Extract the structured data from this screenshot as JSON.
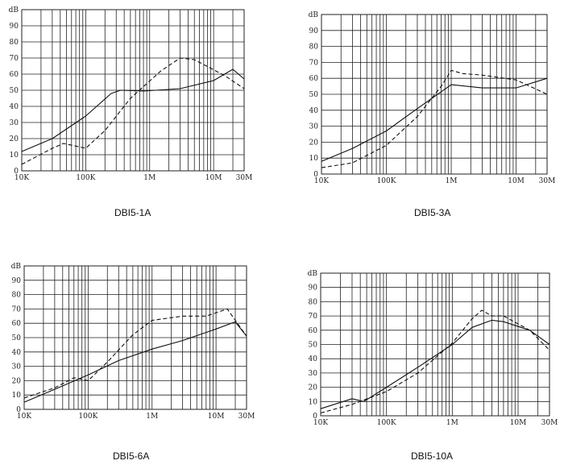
{
  "chart_data": [
    {
      "type": "line",
      "title": "DBI5-1A",
      "ylabel": "dB",
      "xscale": "log",
      "ylim": [
        0,
        100
      ],
      "xlim": [
        10000,
        30000000
      ],
      "x_ticks": [
        "10K",
        "100K",
        "1M",
        "10M",
        "30M"
      ],
      "y_ticks": [
        "0",
        "10",
        "20",
        "30",
        "40",
        "50",
        "60",
        "70",
        "80",
        "90"
      ],
      "series": [
        {
          "style": "solid",
          "points": [
            [
              10000,
              12
            ],
            [
              30000,
              20
            ],
            [
              100000,
              34
            ],
            [
              250000,
              48
            ],
            [
              350000,
              50
            ],
            [
              800000,
              49.5
            ],
            [
              3000000,
              51
            ],
            [
              10000000,
              56
            ],
            [
              20000000,
              63
            ],
            [
              30000000,
              57
            ]
          ]
        },
        {
          "style": "dashed",
          "points": [
            [
              10000,
              4
            ],
            [
              30000,
              14
            ],
            [
              45000,
              17
            ],
            [
              100000,
              14
            ],
            [
              200000,
              25
            ],
            [
              500000,
              45
            ],
            [
              1500000,
              62
            ],
            [
              3000000,
              70
            ],
            [
              5000000,
              69
            ],
            [
              15000000,
              59
            ],
            [
              30000000,
              51
            ]
          ]
        }
      ]
    },
    {
      "type": "line",
      "title": "DBI5-3A",
      "ylabel": "dB",
      "xscale": "log",
      "ylim": [
        0,
        100
      ],
      "xlim": [
        10000,
        30000000
      ],
      "x_ticks": [
        "10K",
        "100K",
        "1M",
        "10M",
        "30M"
      ],
      "y_ticks": [
        "0",
        "10",
        "20",
        "30",
        "40",
        "50",
        "60",
        "70",
        "80",
        "90"
      ],
      "series": [
        {
          "style": "solid",
          "points": [
            [
              10000,
              8
            ],
            [
              30000,
              16
            ],
            [
              100000,
              27
            ],
            [
              300000,
              41
            ],
            [
              1000000,
              56
            ],
            [
              3000000,
              54
            ],
            [
              10000000,
              54
            ],
            [
              30000000,
              60
            ]
          ]
        },
        {
          "style": "dashed",
          "points": [
            [
              10000,
              4
            ],
            [
              30000,
              7
            ],
            [
              100000,
              18
            ],
            [
              300000,
              36
            ],
            [
              700000,
              55
            ],
            [
              1000000,
              65
            ],
            [
              1500000,
              63
            ],
            [
              3000000,
              62
            ],
            [
              10000000,
              59
            ],
            [
              30000000,
              50
            ]
          ]
        }
      ]
    },
    {
      "type": "line",
      "title": "DBI5-6A",
      "ylabel": "dB",
      "xscale": "log",
      "ylim": [
        0,
        100
      ],
      "xlim": [
        10000,
        30000000
      ],
      "x_ticks": [
        "10K",
        "100K",
        "1M",
        "10M",
        "30M"
      ],
      "y_ticks": [
        "0",
        "10",
        "20",
        "30",
        "40",
        "50",
        "60",
        "70",
        "80",
        "90"
      ],
      "series": [
        {
          "style": "solid",
          "points": [
            [
              10000,
              5
            ],
            [
              30000,
              14
            ],
            [
              100000,
              24
            ],
            [
              300000,
              34
            ],
            [
              1000000,
              42
            ],
            [
              3000000,
              48
            ],
            [
              10000000,
              56
            ],
            [
              20000000,
              61
            ],
            [
              30000000,
              51
            ]
          ]
        },
        {
          "style": "dashed",
          "points": [
            [
              10000,
              8
            ],
            [
              30000,
              15
            ],
            [
              60000,
              22
            ],
            [
              100000,
              20
            ],
            [
              200000,
              33
            ],
            [
              500000,
              52
            ],
            [
              1000000,
              62
            ],
            [
              3000000,
              65
            ],
            [
              7000000,
              65
            ],
            [
              15000000,
              70
            ],
            [
              30000000,
              51
            ]
          ]
        }
      ]
    },
    {
      "type": "line",
      "title": "DBI5-10A",
      "ylabel": "dB",
      "xscale": "log",
      "ylim": [
        0,
        100
      ],
      "xlim": [
        10000,
        30000000
      ],
      "x_ticks": [
        "10K",
        "100K",
        "1M",
        "10M",
        "30M"
      ],
      "y_ticks": [
        "0",
        "10",
        "20",
        "30",
        "40",
        "50",
        "60",
        "70",
        "80",
        "90"
      ],
      "series": [
        {
          "style": "solid",
          "points": [
            [
              10000,
              5
            ],
            [
              30000,
              12
            ],
            [
              45000,
              10
            ],
            [
              100000,
              20
            ],
            [
              300000,
              34
            ],
            [
              1000000,
              50
            ],
            [
              2000000,
              62
            ],
            [
              4000000,
              67
            ],
            [
              6000000,
              66
            ],
            [
              15000000,
              60
            ],
            [
              30000000,
              50
            ]
          ]
        },
        {
          "style": "dashed",
          "points": [
            [
              10000,
              2
            ],
            [
              30000,
              8
            ],
            [
              45000,
              11
            ],
            [
              100000,
              17
            ],
            [
              300000,
              30
            ],
            [
              1000000,
              51
            ],
            [
              2000000,
              68
            ],
            [
              2800000,
              74
            ],
            [
              4000000,
              70
            ],
            [
              6000000,
              70
            ],
            [
              15000000,
              60
            ],
            [
              30000000,
              46
            ]
          ]
        }
      ]
    }
  ]
}
